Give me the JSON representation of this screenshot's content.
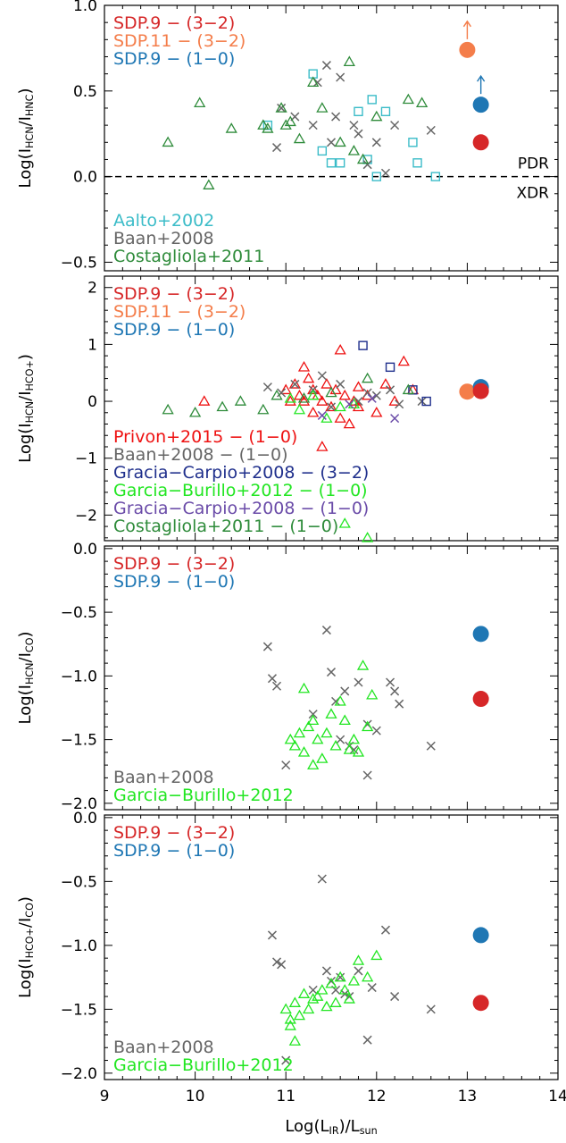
{
  "chart_data": [
    {
      "type": "scatter",
      "title": "",
      "xlabel": "",
      "ylabel": "Log(I_HCN/I_HNC)",
      "xlim": [
        9,
        14
      ],
      "ylim": [
        -0.55,
        1.0
      ],
      "yticks": [
        -0.5,
        0.0,
        0.5,
        1.0
      ],
      "ytick_labels": [
        "-0.5",
        "0.0",
        "0.5",
        "1.0"
      ],
      "hline": {
        "y": 0.0,
        "style": "dashed",
        "labels": [
          "PDR",
          "XDR"
        ]
      },
      "legend_top": [
        {
          "text": "SDP.9 − (3−2)",
          "color": "#d62728"
        },
        {
          "text": "SDP.11 − (3−2)",
          "color": "#f47d4a"
        },
        {
          "text": "SDP.9 − (1−0)",
          "color": "#1f77b4"
        }
      ],
      "legend_bottom": [
        {
          "text": "Aalto+2002",
          "color": "#3bbcc8"
        },
        {
          "text": "Baan+2008",
          "color": "#666666"
        },
        {
          "text": "Costagliola+2011",
          "color": "#2e8b3a"
        }
      ],
      "series": [
        {
          "name": "Aalto+2002",
          "marker": "square",
          "color": "#3bbcc8",
          "x": [
            10.8,
            11.3,
            11.4,
            11.5,
            11.6,
            11.8,
            11.9,
            11.95,
            12.0,
            12.1,
            12.4,
            12.45,
            12.65
          ],
          "y": [
            0.3,
            0.6,
            0.15,
            0.08,
            0.08,
            0.38,
            0.1,
            0.45,
            0.0,
            0.38,
            0.2,
            0.08,
            0.0
          ]
        },
        {
          "name": "Baan+2008",
          "marker": "x",
          "color": "#666666",
          "x": [
            10.9,
            10.95,
            11.1,
            11.3,
            11.35,
            11.45,
            11.5,
            11.55,
            11.6,
            11.75,
            11.8,
            11.9,
            12.0,
            12.1,
            12.2,
            12.6
          ],
          "y": [
            0.17,
            0.4,
            0.35,
            0.3,
            0.55,
            0.65,
            0.2,
            0.35,
            0.58,
            0.3,
            0.25,
            0.07,
            0.2,
            0.02,
            0.3,
            0.27
          ]
        },
        {
          "name": "Costagliola+2011",
          "marker": "triangle",
          "color": "#2e8b3a",
          "x": [
            9.7,
            10.05,
            10.15,
            10.4,
            10.75,
            10.8,
            10.95,
            11.0,
            11.05,
            11.15,
            11.3,
            11.4,
            11.6,
            11.7,
            11.75,
            11.85,
            12.0,
            12.35,
            12.5
          ],
          "y": [
            0.2,
            0.43,
            -0.05,
            0.28,
            0.3,
            0.28,
            0.4,
            0.3,
            0.32,
            0.22,
            0.55,
            0.4,
            0.2,
            0.67,
            0.15,
            0.1,
            0.35,
            0.45,
            0.43
          ]
        },
        {
          "name": "SDP.11 − (3−2)",
          "marker": "circle",
          "color": "#f47d4a",
          "x": [
            13.0
          ],
          "y": [
            0.74
          ],
          "arrow": "up"
        },
        {
          "name": "SDP.9 − (1−0)",
          "marker": "circle",
          "color": "#1f77b4",
          "x": [
            13.15
          ],
          "y": [
            0.42
          ],
          "arrow": "up"
        },
        {
          "name": "SDP.9 − (3−2)",
          "marker": "circle",
          "color": "#d62728",
          "x": [
            13.15
          ],
          "y": [
            0.2
          ]
        }
      ]
    },
    {
      "type": "scatter",
      "title": "",
      "xlabel": "",
      "ylabel": "Log(I_HCN/I_HCO+)",
      "xlim": [
        9,
        14
      ],
      "ylim": [
        -2.45,
        2.2
      ],
      "yticks": [
        -2,
        -1,
        0,
        1,
        2
      ],
      "ytick_labels": [
        "-2",
        "-1",
        "0",
        "1",
        "2"
      ],
      "legend_top": [
        {
          "text": "SDP.9 − (3−2)",
          "color": "#d62728"
        },
        {
          "text": "SDP.11 − (3−2)",
          "color": "#f47d4a"
        },
        {
          "text": "SDP.9 − (1−0)",
          "color": "#1f77b4"
        }
      ],
      "legend_bottom": [
        {
          "text": "Privon+2015 − (1−0)",
          "color": "#ee1111"
        },
        {
          "text": "Baan+2008 − (1−0)",
          "color": "#666666"
        },
        {
          "text": "Gracia−Carpio+2008 − (3−2)",
          "color": "#1f2f8c"
        },
        {
          "text": "Garcia−Burillo+2012 − (1−0)",
          "color": "#22e622"
        },
        {
          "text": "Gracia−Carpio+2008 − (1−0)",
          "color": "#6a4ba8"
        },
        {
          "text": "Costagliola+2011 − (1−0)",
          "color": "#2e8b3a"
        }
      ],
      "series": [
        {
          "name": "Privon+2015 − (1−0)",
          "marker": "triangle",
          "color": "#ee1111",
          "x": [
            10.1,
            11.0,
            11.05,
            11.1,
            11.15,
            11.2,
            11.25,
            11.3,
            11.3,
            11.35,
            11.4,
            11.45,
            11.5,
            11.55,
            11.6,
            11.65,
            11.7,
            11.75,
            11.8,
            11.9,
            12.0,
            12.1,
            12.2,
            12.3,
            12.4,
            11.2,
            11.4,
            11.6,
            11.8
          ],
          "y": [
            0.0,
            0.2,
            0.0,
            0.3,
            0.1,
            0.0,
            0.4,
            0.2,
            -0.2,
            0.1,
            0.0,
            0.3,
            -0.1,
            0.2,
            -0.3,
            0.1,
            -0.4,
            0.0,
            0.25,
            0.1,
            -0.2,
            0.3,
            0.0,
            0.7,
            0.2,
            0.6,
            -0.8,
            0.9,
            -0.1
          ]
        },
        {
          "name": "Baan+2008 − (1−0)",
          "marker": "x",
          "color": "#666666",
          "x": [
            10.8,
            10.95,
            11.1,
            11.3,
            11.4,
            11.5,
            11.6,
            11.8,
            11.9,
            12.0,
            12.15,
            12.25,
            12.5
          ],
          "y": [
            0.25,
            0.15,
            0.3,
            0.2,
            0.45,
            -0.1,
            0.3,
            0.0,
            0.15,
            0.1,
            0.2,
            -0.05,
            0.0
          ]
        },
        {
          "name": "Gracia−Carpio+2008 − (3−2)",
          "marker": "square",
          "color": "#1f2f8c",
          "x": [
            11.85,
            12.15,
            12.4,
            12.55
          ],
          "y": [
            0.98,
            0.6,
            0.2,
            0.0
          ]
        },
        {
          "name": "Garcia−Burillo+2012 − (1−0)",
          "marker": "triangle",
          "color": "#22e622",
          "x": [
            11.05,
            11.15,
            11.3,
            11.45,
            11.6,
            11.75,
            11.9,
            11.65
          ],
          "y": [
            0.05,
            -0.15,
            0.1,
            -0.3,
            -0.1,
            -0.05,
            -2.4,
            -2.15
          ]
        },
        {
          "name": "Gracia−Carpio+2008 − (1−0)",
          "marker": "x",
          "color": "#6a4ba8",
          "x": [
            11.4,
            11.7,
            11.95,
            12.2
          ],
          "y": [
            -0.25,
            -0.05,
            0.05,
            -0.3
          ]
        },
        {
          "name": "Costagliola+2011 − (1−0)",
          "marker": "triangle",
          "color": "#2e8b3a",
          "x": [
            9.7,
            10.0,
            10.3,
            10.5,
            10.75,
            10.9,
            11.2,
            11.5,
            11.9,
            12.35
          ],
          "y": [
            -0.15,
            -0.2,
            -0.1,
            0.0,
            -0.15,
            0.1,
            0.05,
            0.15,
            0.4,
            0.2
          ]
        },
        {
          "name": "SDP.11 − (3−2)",
          "marker": "circle",
          "color": "#f47d4a",
          "x": [
            13.0
          ],
          "y": [
            0.17
          ]
        },
        {
          "name": "SDP.9 − (1−0)",
          "marker": "circle",
          "color": "#1f77b4",
          "x": [
            13.15
          ],
          "y": [
            0.25
          ]
        },
        {
          "name": "SDP.9 − (3−2)",
          "marker": "circle",
          "color": "#d62728",
          "x": [
            13.15
          ],
          "y": [
            0.18
          ]
        }
      ]
    },
    {
      "type": "scatter",
      "title": "",
      "xlabel": "",
      "ylabel": "Log(I_HCN/I_CO)",
      "xlim": [
        9,
        14
      ],
      "ylim": [
        -2.05,
        0.02
      ],
      "yticks": [
        -2.0,
        -1.5,
        -1.0,
        -0.5,
        0.0
      ],
      "ytick_labels": [
        "-2.0",
        "-1.5",
        "-1.0",
        "-0.5",
        "0.0"
      ],
      "legend_top": [
        {
          "text": "SDP.9 − (3−2)",
          "color": "#d62728"
        },
        {
          "text": "SDP.9 − (1−0)",
          "color": "#1f77b4"
        }
      ],
      "legend_bottom": [
        {
          "text": "Baan+2008",
          "color": "#666666"
        },
        {
          "text": "Garcia−Burillo+2012",
          "color": "#22e622"
        }
      ],
      "series": [
        {
          "name": "Baan+2008",
          "marker": "x",
          "color": "#666666",
          "x": [
            10.8,
            10.85,
            10.9,
            11.0,
            11.45,
            11.5,
            11.55,
            11.6,
            11.65,
            11.7,
            11.75,
            11.8,
            11.9,
            12.0,
            12.15,
            12.2,
            12.25,
            12.6,
            11.3,
            11.9
          ],
          "y": [
            -0.77,
            -1.02,
            -1.08,
            -1.7,
            -0.64,
            -0.97,
            -1.2,
            -1.5,
            -1.12,
            -1.55,
            -1.58,
            -1.05,
            -1.38,
            -1.43,
            -1.05,
            -1.12,
            -1.22,
            -1.55,
            -1.3,
            -1.78
          ]
        },
        {
          "name": "Garcia−Burillo+2012",
          "marker": "triangle",
          "color": "#22e622",
          "x": [
            11.05,
            11.1,
            11.15,
            11.2,
            11.25,
            11.3,
            11.35,
            11.4,
            11.45,
            11.5,
            11.55,
            11.6,
            11.65,
            11.7,
            11.75,
            11.8,
            11.85,
            11.9,
            11.95,
            11.2,
            11.3
          ],
          "y": [
            -1.5,
            -1.55,
            -1.45,
            -1.6,
            -1.4,
            -1.35,
            -1.5,
            -1.65,
            -1.45,
            -1.3,
            -1.55,
            -1.2,
            -1.35,
            -1.58,
            -1.5,
            -1.6,
            -0.92,
            -1.4,
            -1.15,
            -1.1,
            -1.7
          ]
        },
        {
          "name": "SDP.9 − (1−0)",
          "marker": "circle",
          "color": "#1f77b4",
          "x": [
            13.15
          ],
          "y": [
            -0.67
          ]
        },
        {
          "name": "SDP.9 − (3−2)",
          "marker": "circle",
          "color": "#d62728",
          "x": [
            13.15
          ],
          "y": [
            -1.18
          ]
        }
      ]
    },
    {
      "type": "scatter",
      "title": "",
      "xlabel": "Log(L_IR)/L_sun",
      "ylabel": "Log(I_HCO+/I_CO)",
      "xlim": [
        9,
        14
      ],
      "ylim": [
        -2.05,
        0.02
      ],
      "xticks": [
        9,
        10,
        11,
        12,
        13,
        14
      ],
      "xtick_labels": [
        "9",
        "10",
        "11",
        "12",
        "13",
        "14"
      ],
      "yticks": [
        -2.0,
        -1.5,
        -1.0,
        -0.5,
        0.0
      ],
      "ytick_labels": [
        "-2.0",
        "-1.5",
        "-1.0",
        "-0.5",
        "0.0"
      ],
      "legend_top": [
        {
          "text": "SDP.9 − (3−2)",
          "color": "#d62728"
        },
        {
          "text": "SDP.9 − (1−0)",
          "color": "#1f77b4"
        }
      ],
      "legend_bottom": [
        {
          "text": "Baan+2008",
          "color": "#666666"
        },
        {
          "text": "Garcia−Burillo+2012",
          "color": "#22e622"
        }
      ],
      "series": [
        {
          "name": "Baan+2008",
          "marker": "x",
          "color": "#666666",
          "x": [
            10.85,
            10.9,
            10.95,
            11.3,
            11.4,
            11.45,
            11.5,
            11.55,
            11.6,
            11.65,
            11.7,
            11.8,
            11.95,
            12.1,
            12.2,
            12.6,
            11.0,
            11.9
          ],
          "y": [
            -0.92,
            -1.13,
            -1.15,
            -1.35,
            -0.48,
            -1.2,
            -1.28,
            -1.35,
            -1.25,
            -1.38,
            -1.4,
            -1.2,
            -1.33,
            -0.88,
            -1.4,
            -1.5,
            -1.9,
            -1.74
          ]
        },
        {
          "name": "Garcia−Burillo+2012",
          "marker": "triangle",
          "color": "#22e622",
          "x": [
            11.0,
            11.05,
            11.1,
            11.15,
            11.2,
            11.25,
            11.3,
            11.35,
            11.4,
            11.45,
            11.5,
            11.55,
            11.6,
            11.65,
            11.7,
            11.75,
            11.8,
            11.9,
            12.0,
            11.05,
            11.1
          ],
          "y": [
            -1.5,
            -1.58,
            -1.45,
            -1.55,
            -1.38,
            -1.5,
            -1.42,
            -1.4,
            -1.35,
            -1.48,
            -1.3,
            -1.45,
            -1.25,
            -1.35,
            -1.42,
            -1.28,
            -1.12,
            -1.25,
            -1.08,
            -1.63,
            -1.75
          ]
        },
        {
          "name": "SDP.9 − (1−0)",
          "marker": "circle",
          "color": "#1f77b4",
          "x": [
            13.15
          ],
          "y": [
            -0.92
          ]
        },
        {
          "name": "SDP.9 − (3−2)",
          "marker": "circle",
          "color": "#d62728",
          "x": [
            13.15
          ],
          "y": [
            -1.45
          ]
        }
      ]
    }
  ]
}
